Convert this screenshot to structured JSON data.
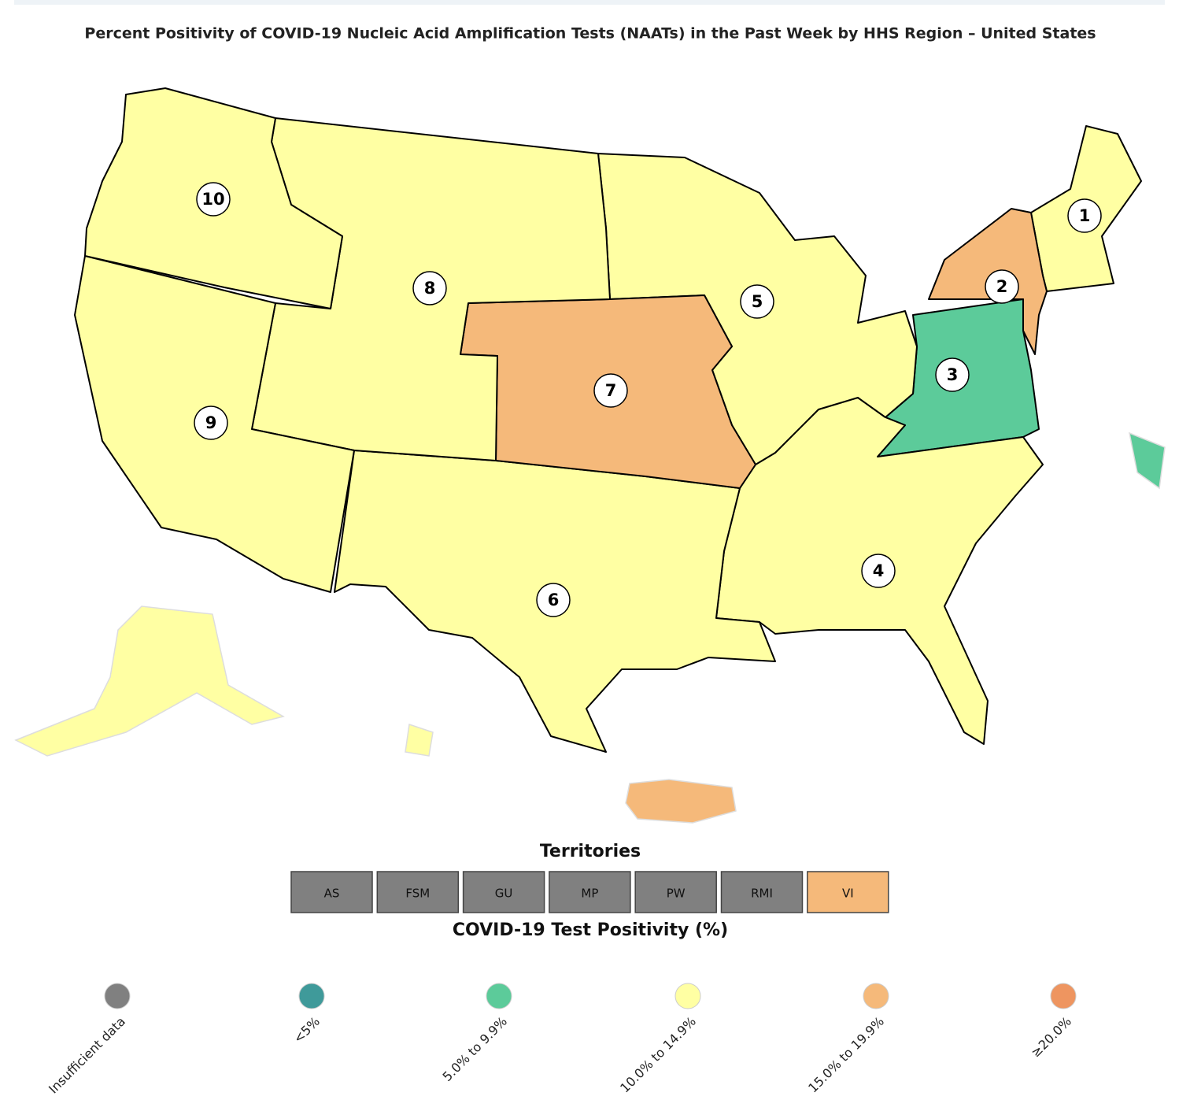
{
  "title": "Percent Positivity of COVID-19 Nucleic Acid Amplification Tests (NAATs) in the Past Week by HHS Region – United States",
  "regions": [
    {
      "label": "1",
      "color": "#ffffa3"
    },
    {
      "label": "2",
      "color": "#f5b97a"
    },
    {
      "label": "3",
      "color": "#5ccb9a"
    },
    {
      "label": "4",
      "color": "#ffffa3"
    },
    {
      "label": "5",
      "color": "#ffffa3"
    },
    {
      "label": "6",
      "color": "#ffffa3"
    },
    {
      "label": "7",
      "color": "#f5b97a"
    },
    {
      "label": "8",
      "color": "#ffffa3"
    },
    {
      "label": "9",
      "color": "#ffffa3"
    },
    {
      "label": "10",
      "color": "#ffffa3"
    }
  ],
  "territories_title": "Territories",
  "territories": [
    {
      "label": "AS",
      "color": "#808080"
    },
    {
      "label": "FSM",
      "color": "#808080"
    },
    {
      "label": "GU",
      "color": "#808080"
    },
    {
      "label": "MP",
      "color": "#808080"
    },
    {
      "label": "PW",
      "color": "#808080"
    },
    {
      "label": "RMI",
      "color": "#808080"
    },
    {
      "label": "VI",
      "color": "#f5b97a"
    }
  ],
  "legend_title": "COVID-19 Test Positivity (%)",
  "legend": [
    {
      "label": "Insufficient data",
      "color": "#808080"
    },
    {
      "label": "<5%",
      "color": "#3f9a9a"
    },
    {
      "label": "5.0% to 9.9%",
      "color": "#5ccb9a"
    },
    {
      "label": "10.0% to 14.9%",
      "color": "#ffffa3"
    },
    {
      "label": "15.0% to 19.9%",
      "color": "#f5b97a"
    },
    {
      "label": "≥20.0%",
      "color": "#ee9560"
    }
  ]
}
